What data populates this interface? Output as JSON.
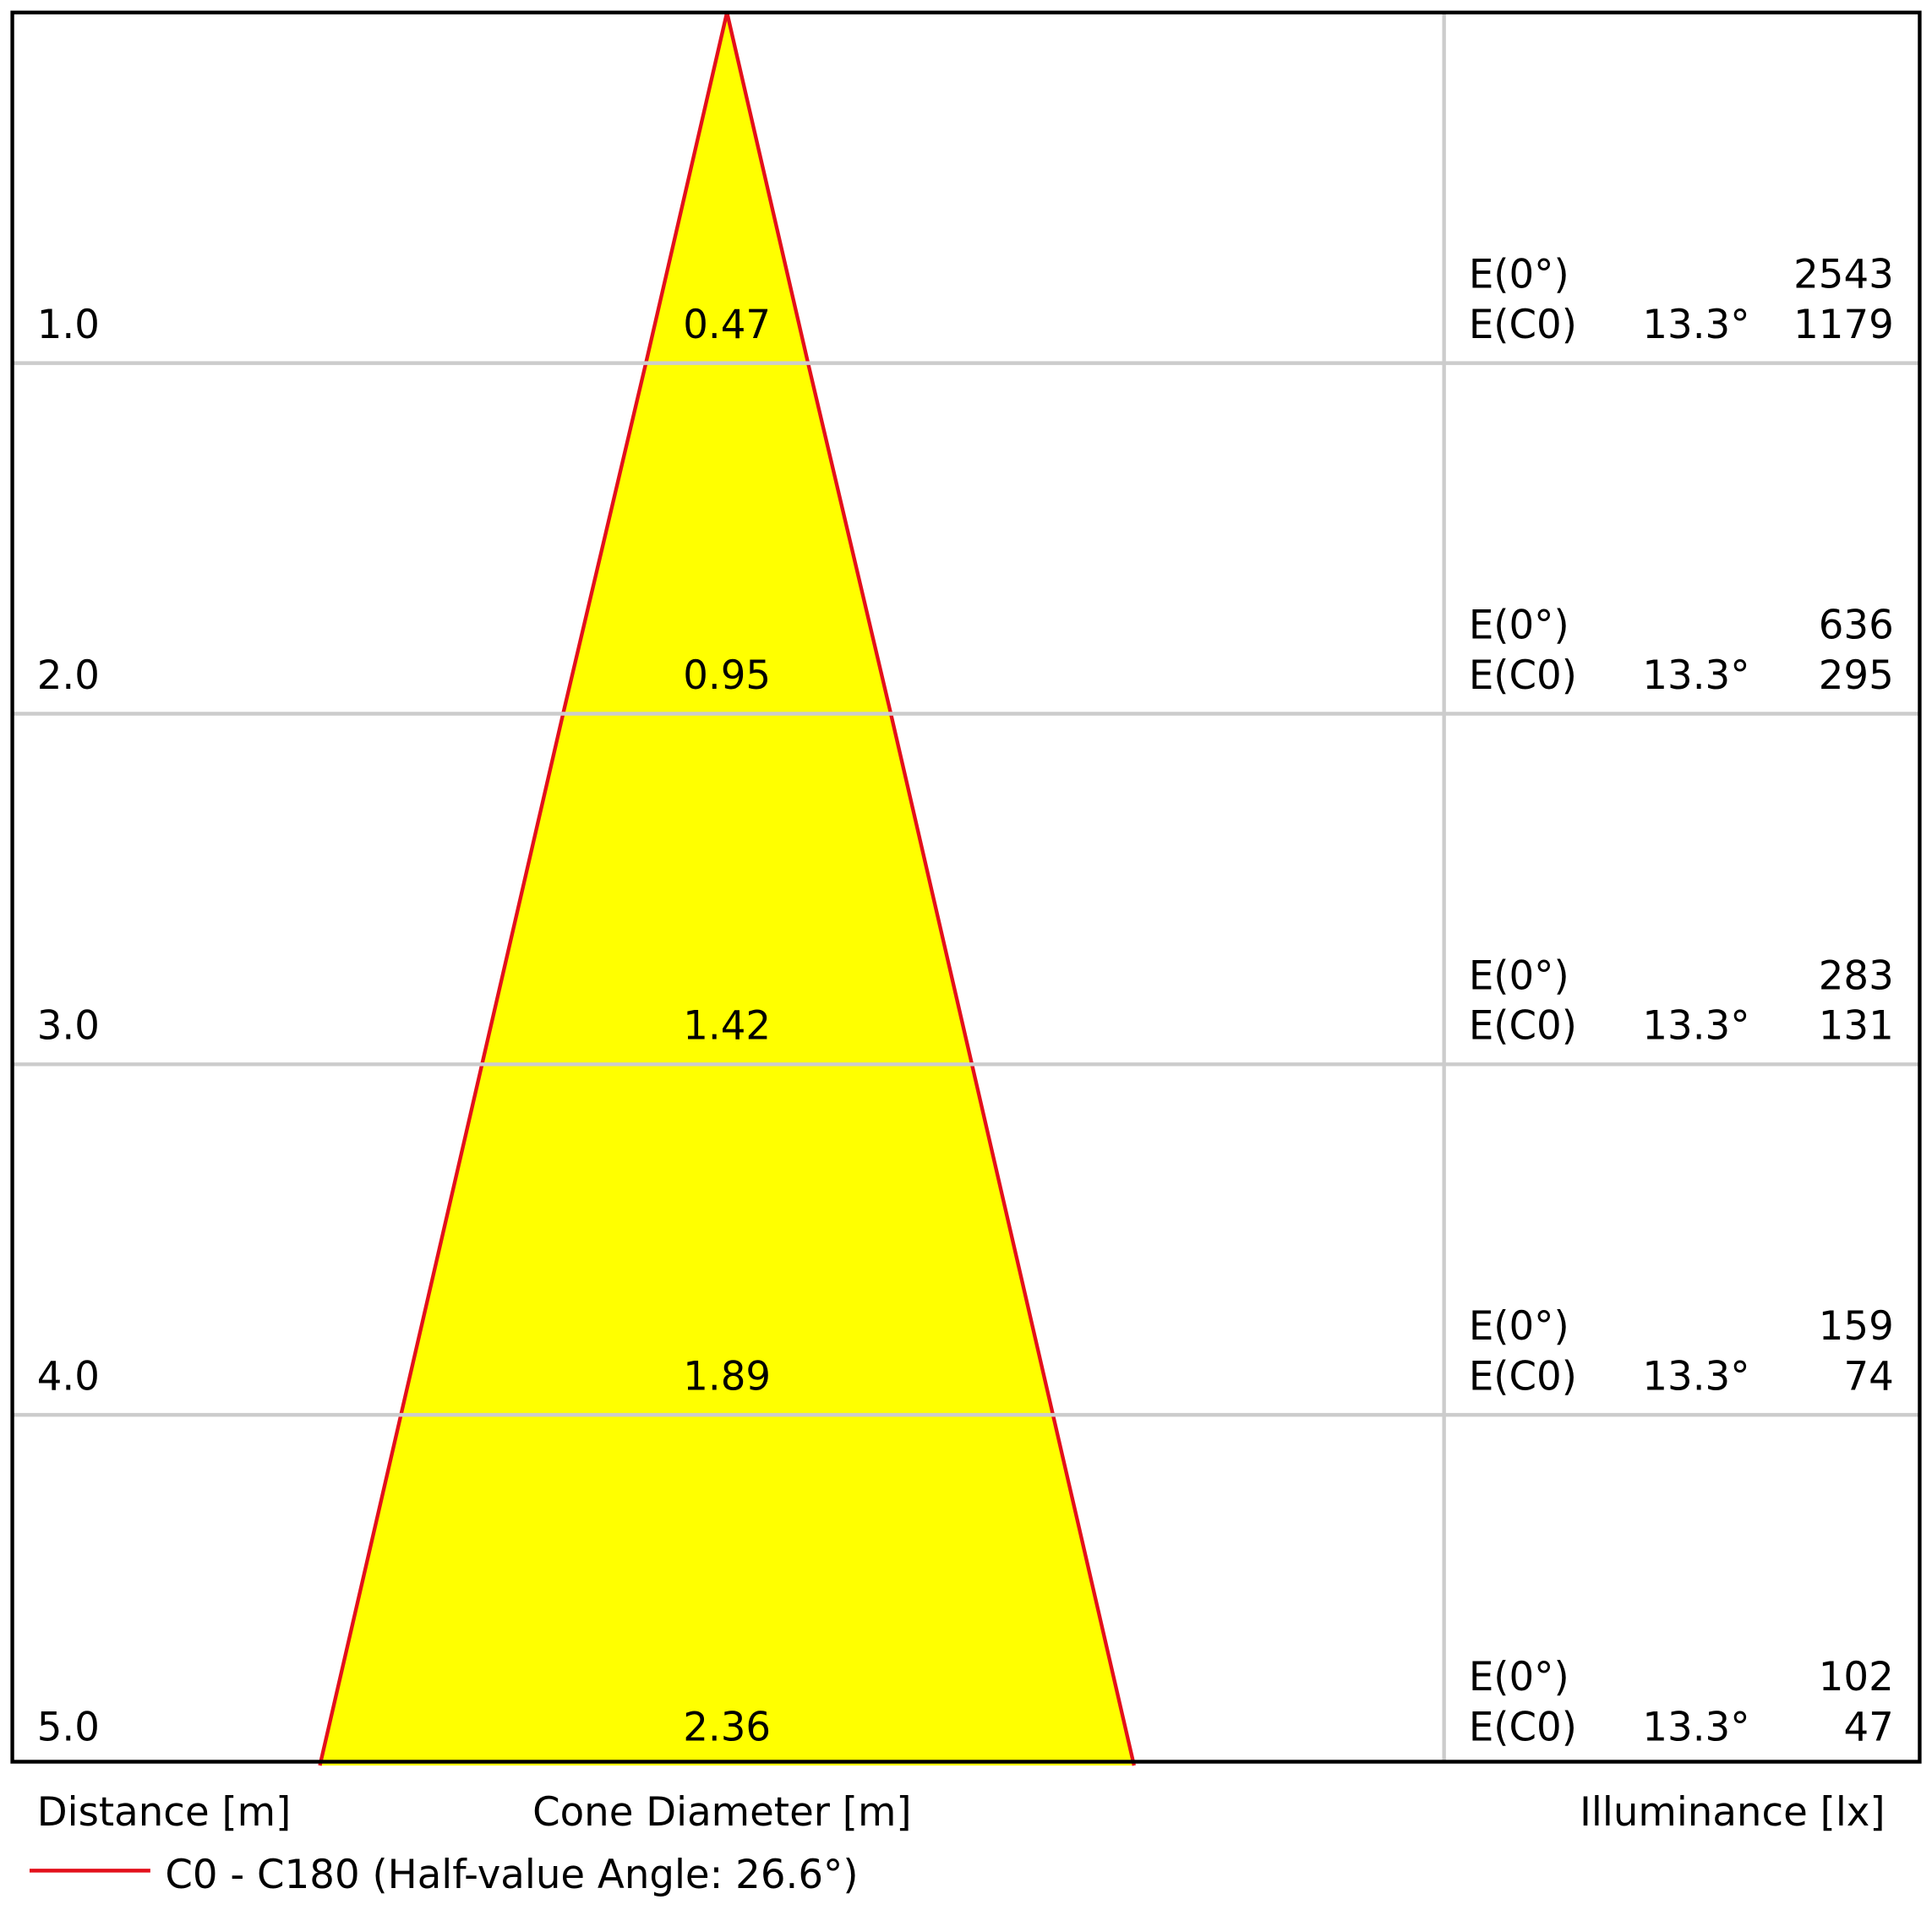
{
  "chart_data": {
    "type": "cone",
    "distances": [
      {
        "value": 1,
        "label": "1.0"
      },
      {
        "value": 2,
        "label": "2.0"
      },
      {
        "value": 3,
        "label": "3.0"
      },
      {
        "value": 4,
        "label": "4.0"
      },
      {
        "value": 5,
        "label": "5.0"
      }
    ],
    "diameters": [
      0.47,
      0.95,
      1.42,
      1.89,
      2.36
    ],
    "e0_label": "E(0°)",
    "ec0_label": "E(C0)",
    "angle_label": "13.3°",
    "e0": [
      2543,
      636,
      283,
      159,
      102
    ],
    "ec0": [
      1179,
      295,
      131,
      74,
      47
    ],
    "x_label_distance": "Distance [m]",
    "x_label_diameter": "Cone Diameter [m]",
    "x_label_illuminance": "Illuminance [lx]",
    "legend": "C0 - C180 (Half-value Angle: 26.6°)",
    "fill_color": "#ffff00",
    "edge_color": "#e3101b"
  }
}
